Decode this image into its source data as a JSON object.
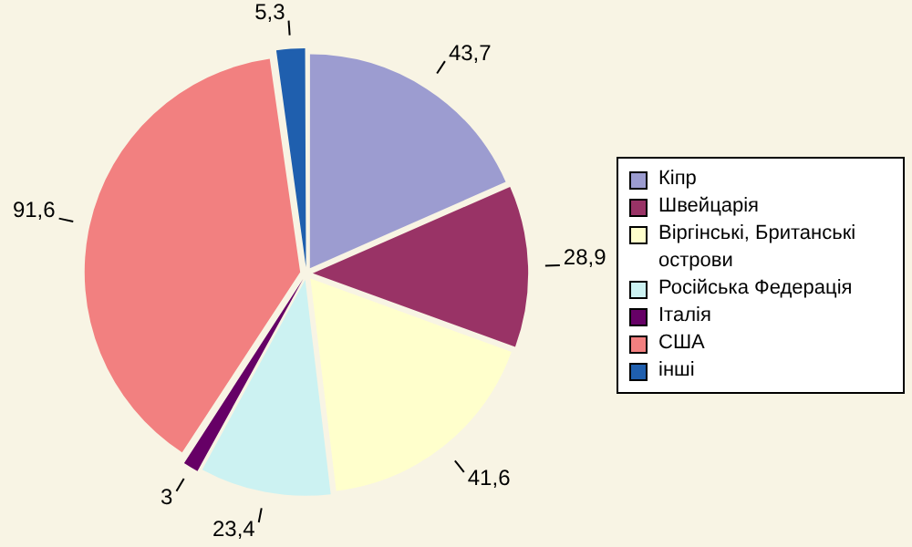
{
  "chart_data": {
    "type": "pie",
    "categories": [
      "Кіпр",
      "Швейцарія",
      "Віргінські, Британські острови",
      "Російська Федерація",
      "Італія",
      "США",
      "інші"
    ],
    "values": [
      43.7,
      28.9,
      41.6,
      23.4,
      3,
      91.6,
      5.3
    ],
    "value_labels": [
      "43,7",
      "28,9",
      "41,6",
      "23,4",
      "3",
      "91,6",
      "5,3"
    ],
    "colors": [
      "#9c9cd0",
      "#993366",
      "#ffffcc",
      "#ccf2f2",
      "#660066",
      "#f28080",
      "#1f5fae"
    ],
    "legend": "right"
  }
}
